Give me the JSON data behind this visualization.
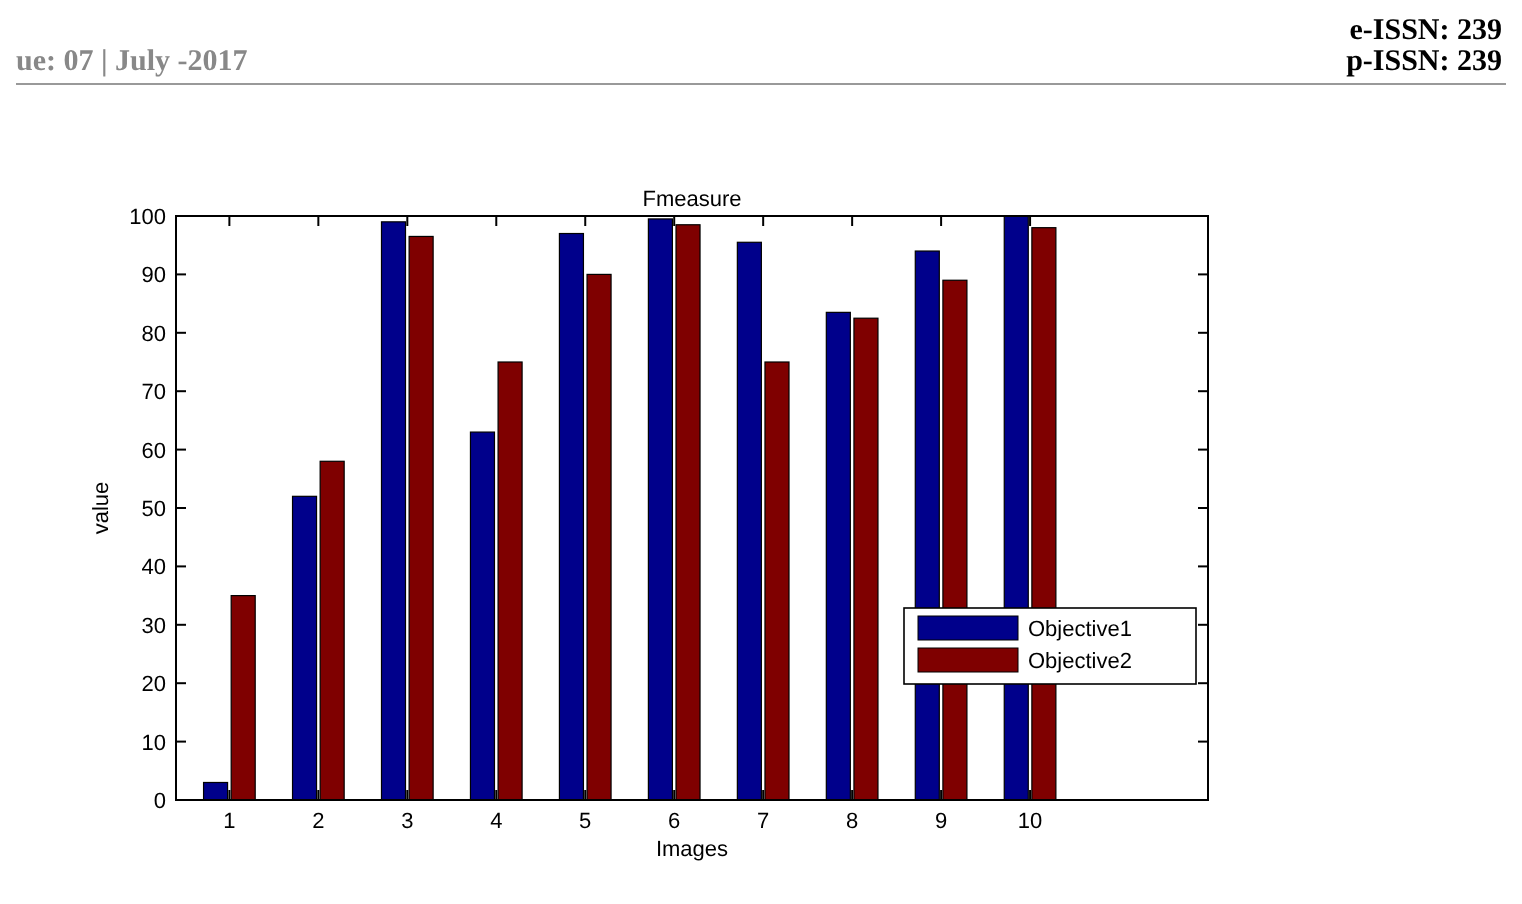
{
  "chart_data": {
    "type": "bar",
    "title": "Fmeasure",
    "xlabel": "Images",
    "ylabel": "value",
    "annotations": [
      "ue: 07 | July -2017",
      "e-ISSN: 239",
      "p-ISSN: 239"
    ],
    "x": [
      1,
      2,
      3,
      4,
      5,
      6,
      7,
      8,
      9,
      10
    ],
    "series": [
      {
        "name": "Objective1",
        "color": "#00008b",
        "values": [
          3,
          52,
          99,
          63,
          97,
          99.5,
          95.5,
          83.5,
          94,
          100
        ]
      },
      {
        "name": "Objective2",
        "color": "#7f0000",
        "values": [
          35,
          58,
          96.5,
          75,
          90,
          98.5,
          75,
          82.5,
          89,
          98
        ]
      }
    ],
    "xlim": [
      0.4,
      12
    ],
    "xticks": [
      1,
      2,
      3,
      4,
      5,
      6,
      7,
      8,
      9,
      10
    ],
    "ylim": [
      0,
      100
    ],
    "yticks": [
      0,
      10,
      20,
      30,
      40,
      50,
      60,
      70,
      80,
      90,
      100
    ],
    "legend": "right"
  }
}
